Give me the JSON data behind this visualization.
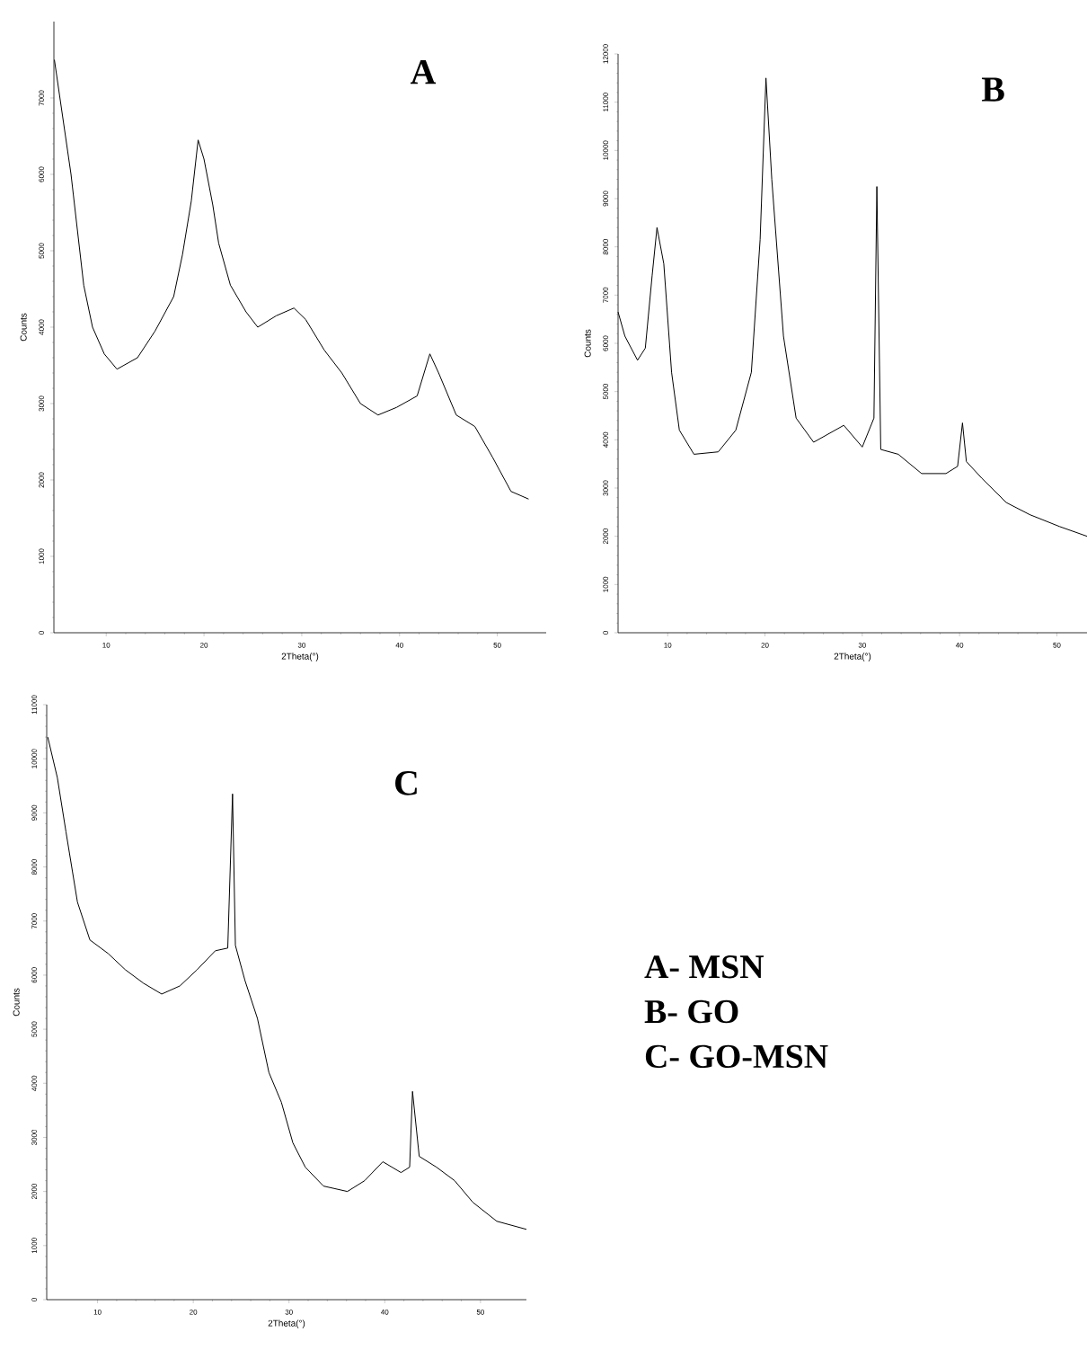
{
  "chart_data": [
    {
      "type": "line",
      "title": "A",
      "xlabel": "2Theta(°)",
      "ylabel": "Counts",
      "xlim": [
        4.65,
        55
      ],
      "ylim": [
        0,
        8000
      ],
      "xticks": [
        10,
        20,
        30,
        40,
        50
      ],
      "yticks": [
        0,
        1000,
        2000,
        3000,
        4000,
        5000,
        6000,
        7000
      ],
      "marker": "none",
      "line_style": "solid",
      "series": [
        {
          "color": "#000000",
          "x": [
            4.7,
            6.4,
            7.7,
            8.6,
            9.8,
            11.1,
            13.2,
            15.0,
            16.9,
            17.8,
            18.7,
            19.4,
            20.0,
            20.9,
            21.5,
            22.7,
            24.3,
            25.5,
            27.4,
            29.2,
            30.4,
            32.3,
            34.1,
            36.0,
            37.8,
            39.7,
            41.8,
            43.1,
            44.0,
            45.8,
            47.7,
            49.5,
            51.4,
            53.2
          ],
          "values": [
            7500,
            6000,
            4550,
            4000,
            3650,
            3450,
            3600,
            3950,
            4400,
            4950,
            5650,
            6450,
            6200,
            5600,
            5100,
            4550,
            4200,
            4000,
            4150,
            4250,
            4100,
            3700,
            3400,
            3000,
            2850,
            2950,
            3100,
            3650,
            3400,
            2850,
            2700,
            2300,
            1850,
            1750
          ]
        }
      ]
    },
    {
      "type": "line",
      "title": "B",
      "xlabel": "2Theta(°)",
      "ylabel": "Counts",
      "xlim": [
        4.9,
        53.1
      ],
      "ylim": [
        0,
        12000
      ],
      "xticks": [
        10,
        20,
        30,
        40,
        50
      ],
      "yticks": [
        0,
        1000,
        2000,
        3000,
        4000,
        5000,
        6000,
        7000,
        8000,
        9000,
        10000,
        11000,
        12000
      ],
      "marker": "none",
      "line_style": "solid",
      "series": [
        {
          "color": "#000000",
          "x": [
            4.9,
            5.6,
            6.9,
            7.7,
            8.4,
            8.9,
            9.6,
            10.4,
            11.2,
            12.7,
            15.2,
            17.0,
            18.6,
            19.5,
            20.1,
            20.7,
            21.9,
            23.2,
            25.0,
            28.1,
            30.0,
            31.2,
            31.5,
            31.9,
            33.7,
            36.1,
            38.6,
            39.8,
            40.3,
            40.7,
            42.3,
            44.8,
            47.2,
            50.3,
            53.1
          ],
          "values": [
            6650,
            6150,
            5650,
            5900,
            7400,
            8400,
            7650,
            5400,
            4200,
            3700,
            3750,
            4200,
            5400,
            8150,
            11500,
            9400,
            6150,
            4450,
            3950,
            4300,
            3850,
            4450,
            9250,
            3800,
            3700,
            3300,
            3300,
            3450,
            4350,
            3550,
            3200,
            2700,
            2450,
            2200,
            2000
          ]
        }
      ]
    },
    {
      "type": "line",
      "title": "C",
      "xlabel": "2Theta(°)",
      "ylabel": "Counts",
      "xlim": [
        4.69,
        54.8
      ],
      "ylim": [
        0,
        11000
      ],
      "xticks": [
        10,
        20,
        30,
        40,
        50
      ],
      "yticks": [
        0,
        1000,
        2000,
        3000,
        4000,
        5000,
        6000,
        7000,
        8000,
        9000,
        10000,
        11000
      ],
      "marker": "none",
      "line_style": "solid",
      "series": [
        {
          "color": "#000000",
          "x": [
            4.8,
            5.8,
            6.7,
            7.9,
            9.2,
            11.1,
            12.9,
            14.8,
            16.7,
            18.6,
            20.4,
            22.3,
            23.6,
            24.1,
            24.4,
            25.4,
            26.7,
            27.9,
            29.2,
            30.4,
            31.7,
            33.6,
            36.1,
            37.9,
            39.8,
            41.7,
            42.6,
            42.9,
            43.6,
            45.4,
            47.3,
            49.2,
            51.7,
            54.8
          ],
          "values": [
            10400,
            9650,
            8650,
            7350,
            6650,
            6400,
            6100,
            5850,
            5650,
            5800,
            6100,
            6450,
            6500,
            9350,
            6550,
            5900,
            5200,
            4200,
            3650,
            2900,
            2450,
            2100,
            2000,
            2200,
            2550,
            2350,
            2450,
            3850,
            2650,
            2450,
            2200,
            1800,
            1450,
            1300
          ]
        }
      ]
    },
    {
      "type": "other",
      "annotations": [
        "A- MSN",
        "B- GO",
        "C- GO-MSN"
      ]
    }
  ]
}
